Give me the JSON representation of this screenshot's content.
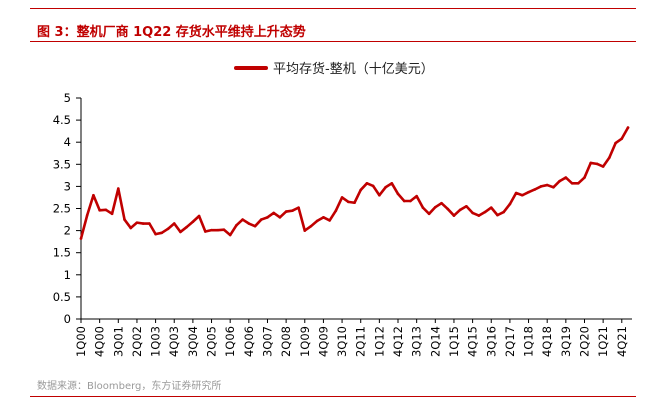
{
  "header": {
    "figure_title": "图 3：整机厂商 1Q22 存货水平维持上升态势"
  },
  "footer": {
    "source": "数据来源：Bloomberg，东方证券研究所"
  },
  "colors": {
    "accent": "#c00000",
    "series": "#c00000"
  },
  "chart_data": {
    "type": "line",
    "title": "",
    "xlabel": "",
    "ylabel": "",
    "ylim": [
      0,
      5
    ],
    "yticks": [
      0,
      0.5,
      1,
      1.5,
      2,
      2.5,
      3,
      3.5,
      4,
      4.5,
      5
    ],
    "grid": false,
    "legend": "top-center",
    "categories": [
      "1Q00",
      "2Q00",
      "3Q00",
      "4Q00",
      "1Q01",
      "2Q01",
      "3Q01",
      "4Q01",
      "1Q02",
      "2Q02",
      "3Q02",
      "4Q02",
      "1Q03",
      "2Q03",
      "3Q03",
      "4Q03",
      "1Q04",
      "2Q04",
      "3Q04",
      "4Q04",
      "1Q05",
      "2Q05",
      "3Q05",
      "4Q05",
      "1Q06",
      "2Q06",
      "3Q06",
      "4Q06",
      "1Q07",
      "2Q07",
      "3Q07",
      "4Q07",
      "1Q08",
      "2Q08",
      "3Q08",
      "4Q08",
      "1Q09",
      "2Q09",
      "3Q09",
      "4Q09",
      "1Q10",
      "2Q10",
      "3Q10",
      "4Q10",
      "1Q11",
      "2Q11",
      "3Q11",
      "4Q11",
      "1Q12",
      "2Q12",
      "3Q12",
      "4Q12",
      "1Q13",
      "2Q13",
      "3Q13",
      "4Q13",
      "1Q14",
      "2Q14",
      "3Q14",
      "4Q14",
      "1Q15",
      "2Q15",
      "3Q15",
      "4Q15",
      "1Q16",
      "2Q16",
      "3Q16",
      "4Q16",
      "1Q17",
      "2Q17",
      "3Q17",
      "4Q17",
      "1Q18",
      "2Q18",
      "3Q18",
      "4Q18",
      "1Q19",
      "2Q19",
      "3Q19",
      "4Q19",
      "1Q20",
      "2Q20",
      "3Q20",
      "4Q20",
      "1Q21",
      "2Q21",
      "3Q21",
      "4Q21",
      "1Q22"
    ],
    "tick_labels": [
      "1Q00",
      "4Q00",
      "3Q01",
      "2Q02",
      "1Q03",
      "4Q03",
      "3Q04",
      "2Q05",
      "1Q06",
      "4Q06",
      "3Q07",
      "2Q08",
      "1Q09",
      "4Q09",
      "3Q10",
      "2Q11",
      "1Q12",
      "4Q12",
      "3Q13",
      "2Q14",
      "1Q15",
      "4Q15",
      "3Q16",
      "2Q17",
      "1Q18",
      "4Q18",
      "3Q19",
      "2Q20",
      "1Q21",
      "4Q21"
    ],
    "series": [
      {
        "name": "平均存货-整机（十亿美元）",
        "values": [
          1.82,
          2.35,
          2.8,
          2.46,
          2.47,
          2.38,
          2.95,
          2.25,
          2.06,
          2.18,
          2.16,
          2.16,
          1.92,
          1.95,
          2.04,
          2.16,
          1.97,
          2.08,
          2.2,
          2.33,
          1.98,
          2.01,
          2.01,
          2.02,
          1.9,
          2.12,
          2.25,
          2.16,
          2.1,
          2.25,
          2.3,
          2.4,
          2.3,
          2.43,
          2.45,
          2.52,
          2.0,
          2.1,
          2.22,
          2.3,
          2.23,
          2.45,
          2.75,
          2.65,
          2.63,
          2.92,
          3.07,
          3.01,
          2.8,
          2.98,
          3.07,
          2.83,
          2.67,
          2.67,
          2.78,
          2.52,
          2.38,
          2.53,
          2.62,
          2.49,
          2.34,
          2.47,
          2.55,
          2.4,
          2.34,
          2.42,
          2.52,
          2.35,
          2.42,
          2.6,
          2.85,
          2.8,
          2.87,
          2.93,
          3.0,
          3.03,
          2.98,
          3.12,
          3.2,
          3.07,
          3.07,
          3.2,
          3.53,
          3.51,
          3.45,
          3.65,
          3.98,
          4.08,
          4.33
        ]
      }
    ]
  }
}
